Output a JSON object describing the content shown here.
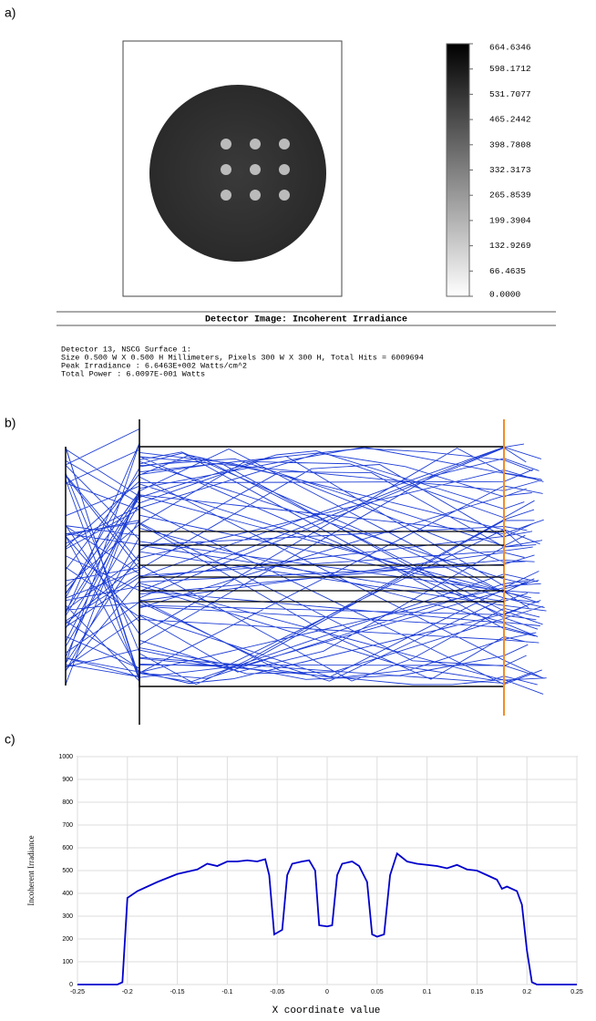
{
  "labels": [
    "a)",
    "b)",
    "c)"
  ],
  "detector": {
    "caption": "Detector Image: Incoherent Irradiance",
    "info": [
      "Detector 13, NSCG Surface 1:",
      "Size 0.500 W X 0.500 H Millimeters, Pixels 300 W X 300 H, Total Hits = 6009694",
      "Peak Irradiance : 6.6463E+002 Watts/cm^2",
      "Total Power     : 6.0097E-001 Watts"
    ]
  },
  "chart_data": [
    {
      "type": "colorbar",
      "clim": [
        0,
        664.6346
      ],
      "ticks": [
        664.6346,
        598.1712,
        531.7077,
        465.2442,
        398.7808,
        332.3173,
        265.8539,
        199.3904,
        132.9269,
        66.4635,
        {
          "value": 0,
          "label": "0.0000"
        }
      ]
    },
    {
      "type": "line",
      "xlabel": "X coordinate value",
      "ylabel": "Incoherent Irradiance",
      "color": "#0000cc",
      "grid": true,
      "xlim": [
        -0.25,
        0.25
      ],
      "ylim": [
        0,
        1000
      ],
      "xticks": [
        -0.25,
        -0.2,
        -0.15,
        -0.1,
        -0.05,
        0,
        0.05,
        0.1,
        0.15,
        0.2,
        0.25
      ],
      "yticks": [
        0,
        100,
        200,
        300,
        400,
        500,
        600,
        700,
        800,
        900,
        1000
      ],
      "x": [
        -0.25,
        -0.21,
        -0.205,
        -0.2,
        -0.19,
        -0.17,
        -0.15,
        -0.13,
        -0.12,
        -0.11,
        -0.1,
        -0.09,
        -0.08,
        -0.07,
        -0.062,
        -0.058,
        -0.053,
        -0.045,
        -0.04,
        -0.035,
        -0.025,
        -0.018,
        -0.012,
        -0.008,
        0,
        0.005,
        0.01,
        0.015,
        0.025,
        0.032,
        0.04,
        0.045,
        0.05,
        0.057,
        0.063,
        0.07,
        0.08,
        0.09,
        0.1,
        0.11,
        0.12,
        0.13,
        0.14,
        0.15,
        0.16,
        0.17,
        0.175,
        0.18,
        0.19,
        0.195,
        0.2,
        0.205,
        0.21,
        0.25
      ],
      "values": [
        0,
        0,
        10,
        380,
        410,
        450,
        485,
        505,
        530,
        520,
        540,
        540,
        545,
        540,
        550,
        480,
        220,
        240,
        480,
        530,
        540,
        545,
        500,
        260,
        255,
        260,
        480,
        530,
        540,
        520,
        450,
        220,
        210,
        220,
        480,
        575,
        540,
        530,
        525,
        520,
        510,
        525,
        505,
        500,
        480,
        460,
        420,
        430,
        410,
        350,
        150,
        10,
        0,
        0
      ]
    }
  ]
}
